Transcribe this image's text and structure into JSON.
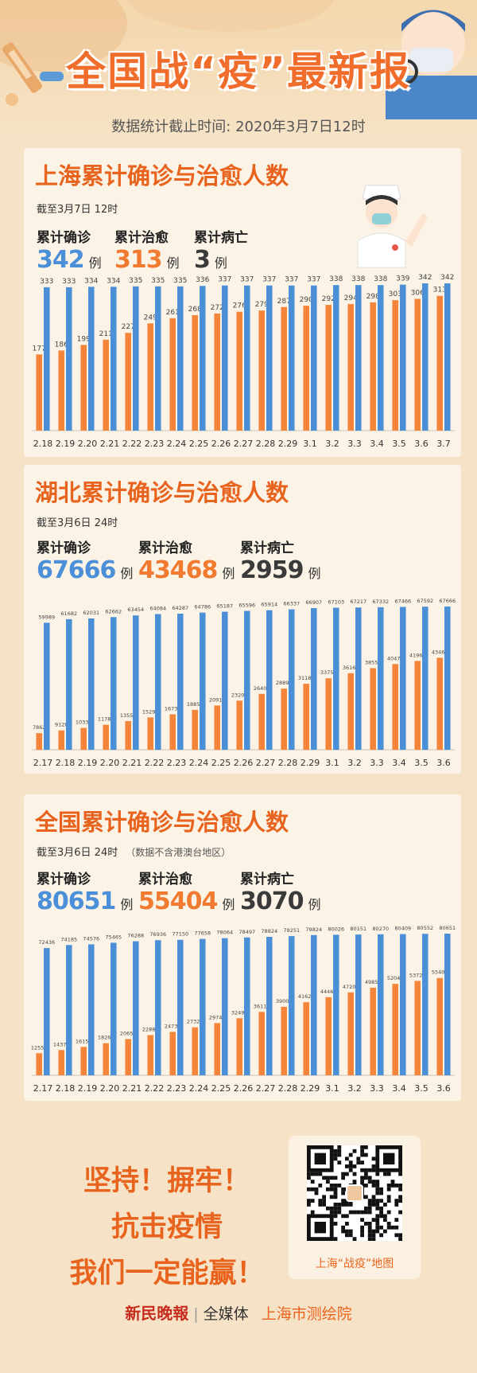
{
  "header": {
    "title": "全国战“疫”最新报",
    "subtitle": "数据统计截止时间: 2020年3月7日12时"
  },
  "sections": [
    {
      "title": "上海累计确诊与治愈人数",
      "note": "截至3月7日 12时",
      "note_extra": "",
      "stats": [
        {
          "label": "累计确诊",
          "value": "342",
          "unit": "例"
        },
        {
          "label": "累计治愈",
          "value": "313",
          "unit": "例"
        },
        {
          "label": "累计病亡",
          "value": "3",
          "unit": "例"
        }
      ]
    },
    {
      "title": "湖北累计确诊与治愈人数",
      "note": "截至3月6日 24时",
      "note_extra": "",
      "stats": [
        {
          "label": "累计确诊",
          "value": "67666",
          "unit": "例"
        },
        {
          "label": "累计治愈",
          "value": "43468",
          "unit": "例"
        },
        {
          "label": "累计病亡",
          "value": "2959",
          "unit": "例"
        }
      ]
    },
    {
      "title": "全国累计确诊与治愈人数",
      "note": "截至3月6日 24时",
      "note_extra": "（数据不含港澳台地区）",
      "stats": [
        {
          "label": "累计确诊",
          "value": "80651",
          "unit": "例"
        },
        {
          "label": "累计治愈",
          "value": "55404",
          "unit": "例"
        },
        {
          "label": "累计病亡",
          "value": "3070",
          "unit": "例"
        }
      ]
    }
  ],
  "chart_data": [
    {
      "type": "bar",
      "categories": [
        "2.18",
        "2.19",
        "2.20",
        "2.21",
        "2.22",
        "2.23",
        "2.24",
        "2.25",
        "2.26",
        "2.27",
        "2.28",
        "2.29",
        "3.1",
        "3.2",
        "3.3",
        "3.4",
        "3.5",
        "3.6",
        "3.7"
      ],
      "series": [
        {
          "values": [
            177,
            186,
            199,
            211,
            227,
            249,
            261,
            268,
            272,
            276,
            279,
            287,
            290,
            292,
            294,
            298,
            303,
            306,
            313
          ],
          "color": "#f5853a"
        },
        {
          "values": [
            333,
            333,
            334,
            334,
            335,
            335,
            335,
            336,
            337,
            337,
            337,
            337,
            337,
            338,
            338,
            338,
            339,
            342,
            342
          ],
          "color": "#4a8fd8"
        }
      ],
      "ylim": [
        0,
        342
      ]
    },
    {
      "type": "bar",
      "categories": [
        "2.17",
        "2.18",
        "2.19",
        "2.20",
        "2.21",
        "2.22",
        "2.23",
        "2.24",
        "2.25",
        "2.26",
        "2.27",
        "2.28",
        "2.29",
        "3.1",
        "3.2",
        "3.3",
        "3.4",
        "3.5",
        "3.6"
      ],
      "series": [
        {
          "values": [
            7862,
            9128,
            10337,
            11788,
            13557,
            15299,
            16738,
            18854,
            20912,
            23200,
            26403,
            28895,
            31187,
            33757,
            36167,
            38556,
            40479,
            41966,
            43468
          ],
          "color": "#f5853a"
        },
        {
          "values": [
            59989,
            61682,
            62031,
            62662,
            63454,
            64084,
            64287,
            64786,
            65187,
            65596,
            65914,
            66337,
            66907,
            67103,
            67217,
            67332,
            67466,
            67592,
            67666
          ],
          "color": "#4a8fd8"
        }
      ],
      "ylim": [
        0,
        67666
      ]
    },
    {
      "type": "bar",
      "categories": [
        "2.17",
        "2.18",
        "2.19",
        "2.20",
        "2.21",
        "2.22",
        "2.23",
        "2.24",
        "2.25",
        "2.26",
        "2.27",
        "2.28",
        "2.29",
        "3.1",
        "3.2",
        "3.3",
        "3.4",
        "3.5",
        "3.6"
      ],
      "series": [
        {
          "values": [
            12552,
            14376,
            16155,
            18264,
            20659,
            22888,
            24734,
            27323,
            29745,
            32495,
            36117,
            39002,
            41625,
            44462,
            47204,
            49856,
            52045,
            53726,
            55404
          ],
          "color": "#f5853a"
        },
        {
          "values": [
            72436,
            74185,
            74576,
            75465,
            76288,
            76936,
            77150,
            77658,
            78064,
            78497,
            78824,
            79251,
            79824,
            80026,
            80151,
            80270,
            80409,
            80552,
            80651
          ],
          "color": "#4a8fd8"
        }
      ],
      "ylim": [
        0,
        80651
      ]
    }
  ],
  "slogan": {
    "lines": [
      "坚持！摒牢！",
      "抗击疫情",
      "我们一定能赢！"
    ]
  },
  "qr": {
    "caption": "上海“战疫”地图"
  },
  "footer": {
    "brand": "新民晚報",
    "media": "全媒体",
    "institute": "上海市测绘院"
  }
}
